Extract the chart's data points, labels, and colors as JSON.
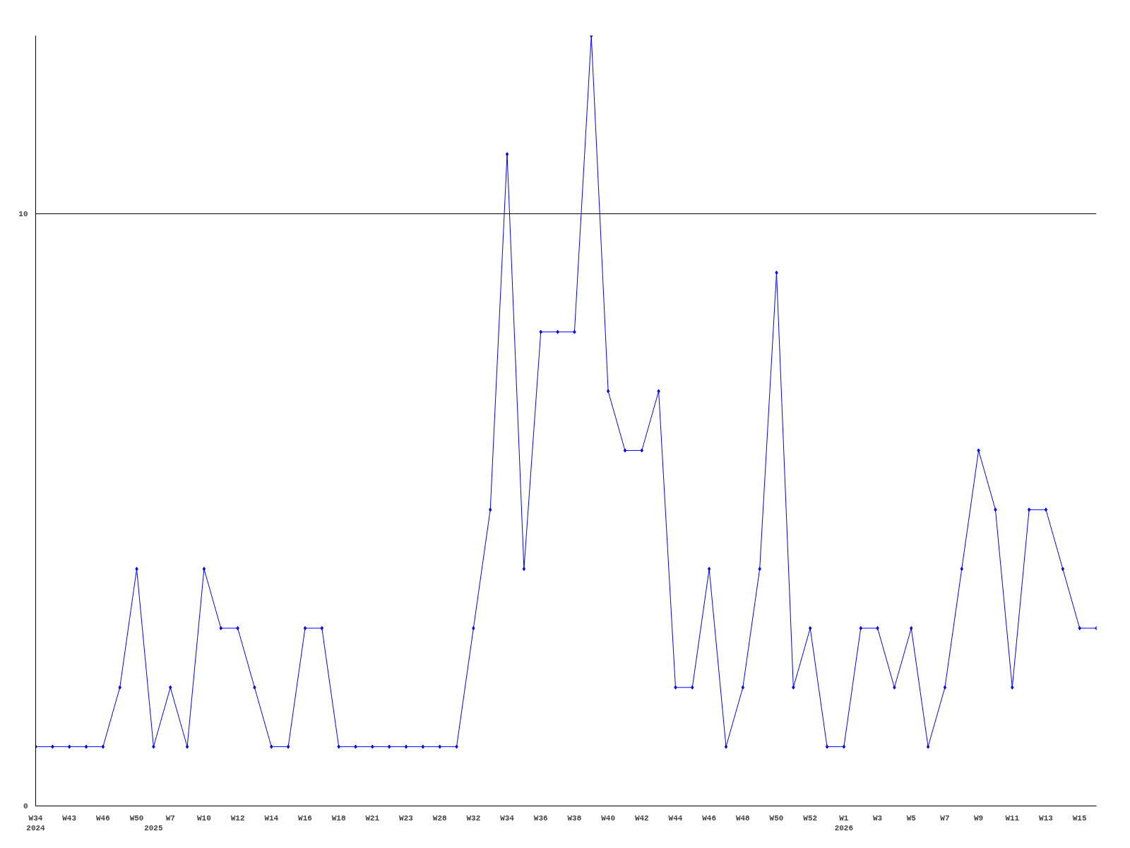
{
  "chart_data": {
    "type": "line",
    "color": "#0000ff",
    "marker": "diamond",
    "grid": "y",
    "ylim": [
      0,
      13
    ],
    "yticks": [
      0,
      10
    ],
    "categories": [
      "W34\n2024",
      null,
      "W43",
      null,
      "W46",
      null,
      "W50",
      "\n2025",
      "W7",
      null,
      "W10",
      null,
      "W12",
      null,
      "W14",
      null,
      "W16",
      null,
      "W18",
      null,
      "W21",
      null,
      "W23",
      null,
      "W28",
      null,
      "W32",
      null,
      "W34",
      null,
      "W36",
      null,
      "W38",
      null,
      "W40",
      null,
      "W42",
      null,
      "W44",
      null,
      "W46",
      null,
      "W48",
      null,
      "W50",
      null,
      "W52",
      null,
      "W1\n2026",
      null,
      "W3",
      null,
      "W5",
      null,
      "W7",
      null,
      "W9",
      null,
      "W11",
      null,
      "W13",
      null,
      "W15",
      null
    ],
    "values": [
      1,
      1,
      1,
      1,
      1,
      2,
      4,
      1,
      2,
      1,
      4,
      3,
      3,
      2,
      1,
      1,
      3,
      3,
      1,
      1,
      1,
      1,
      1,
      1,
      1,
      1,
      3,
      5,
      11,
      4,
      8,
      8,
      8,
      13,
      7,
      6,
      6,
      7,
      2,
      2,
      4,
      1,
      2,
      4,
      9,
      2,
      3,
      1,
      1,
      3,
      3,
      2,
      3,
      1,
      2,
      4,
      6,
      5,
      2,
      5,
      5,
      4,
      3,
      3
    ]
  }
}
